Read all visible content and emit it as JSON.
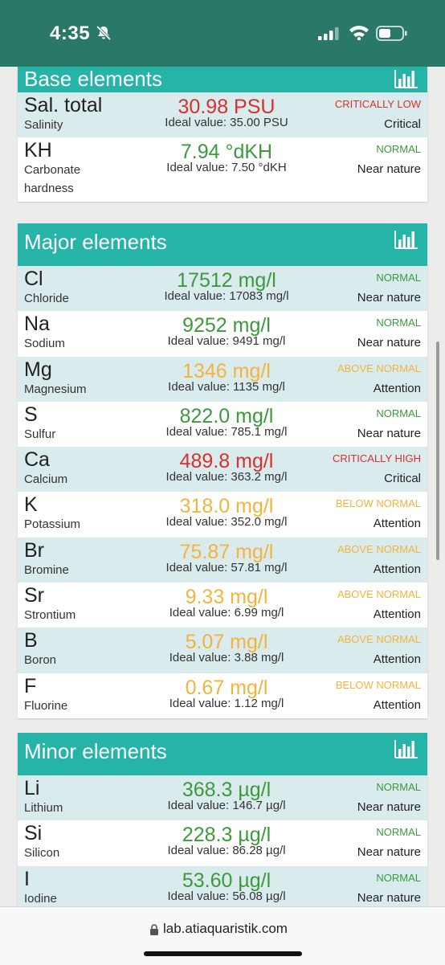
{
  "status_bar": {
    "time": "4:35"
  },
  "sections": {
    "base": {
      "title": "Base elements",
      "rows": [
        {
          "symbol": "Sal. total",
          "name": "Salinity",
          "value": "30.98 PSU",
          "ideal": "Ideal value: 35.00 PSU",
          "status": "CRITICALLY LOW",
          "verdict": "Critical",
          "level": "red"
        },
        {
          "symbol": "KH",
          "name": "Carbonate hardness",
          "value": "7.94 °dKH",
          "ideal": "Ideal value: 7.50 °dKH",
          "status": "NORMAL",
          "verdict": "Near nature",
          "level": "green"
        }
      ]
    },
    "major": {
      "title": "Major elements",
      "rows": [
        {
          "symbol": "Cl",
          "name": "Chloride",
          "value": "17512 mg/l",
          "ideal": "Ideal value: 17083 mg/l",
          "status": "NORMAL",
          "verdict": "Near nature",
          "level": "green"
        },
        {
          "symbol": "Na",
          "name": "Sodium",
          "value": "9252 mg/l",
          "ideal": "Ideal value: 9491 mg/l",
          "status": "NORMAL",
          "verdict": "Near nature",
          "level": "green"
        },
        {
          "symbol": "Mg",
          "name": "Magnesium",
          "value": "1346 mg/l",
          "ideal": "Ideal value: 1135 mg/l",
          "status": "ABOVE NORMAL",
          "verdict": "Attention",
          "level": "orange"
        },
        {
          "symbol": "S",
          "name": "Sulfur",
          "value": "822.0 mg/l",
          "ideal": "Ideal value: 785.1 mg/l",
          "status": "NORMAL",
          "verdict": "Near nature",
          "level": "green"
        },
        {
          "symbol": "Ca",
          "name": "Calcium",
          "value": "489.8 mg/l",
          "ideal": "Ideal value: 363.2 mg/l",
          "status": "CRITICALLY HIGH",
          "verdict": "Critical",
          "level": "red"
        },
        {
          "symbol": "K",
          "name": "Potassium",
          "value": "318.0 mg/l",
          "ideal": "Ideal value: 352.0 mg/l",
          "status": "BELOW NORMAL",
          "verdict": "Attention",
          "level": "orange"
        },
        {
          "symbol": "Br",
          "name": "Bromine",
          "value": "75.87 mg/l",
          "ideal": "Ideal value: 57.81 mg/l",
          "status": "ABOVE NORMAL",
          "verdict": "Attention",
          "level": "orange"
        },
        {
          "symbol": "Sr",
          "name": "Strontium",
          "value": "9.33 mg/l",
          "ideal": "Ideal value: 6.99 mg/l",
          "status": "ABOVE NORMAL",
          "verdict": "Attention",
          "level": "orange"
        },
        {
          "symbol": "B",
          "name": "Boron",
          "value": "5.07 mg/l",
          "ideal": "Ideal value: 3.88 mg/l",
          "status": "ABOVE NORMAL",
          "verdict": "Attention",
          "level": "orange"
        },
        {
          "symbol": "F",
          "name": "Fluorine",
          "value": "0.67 mg/l",
          "ideal": "Ideal value: 1.12 mg/l",
          "status": "BELOW NORMAL",
          "verdict": "Attention",
          "level": "orange"
        }
      ]
    },
    "minor": {
      "title": "Minor elements",
      "rows": [
        {
          "symbol": "Li",
          "name": "Lithium",
          "value": "368.3 µg/l",
          "ideal": "Ideal value: 146.7 µg/l",
          "status": "NORMAL",
          "verdict": "Near nature",
          "level": "green"
        },
        {
          "symbol": "Si",
          "name": "Silicon",
          "value": "228.3 µg/l",
          "ideal": "Ideal value: 86.28 µg/l",
          "status": "NORMAL",
          "verdict": "Near nature",
          "level": "green"
        },
        {
          "symbol": "I",
          "name": "Iodine",
          "value": "53.60 µg/l",
          "ideal": "Ideal value: 56.08 µg/l",
          "status": "NORMAL",
          "verdict": "Near nature",
          "level": "green"
        }
      ]
    }
  },
  "browser": {
    "url": "lab.atiaquaristik.com"
  }
}
